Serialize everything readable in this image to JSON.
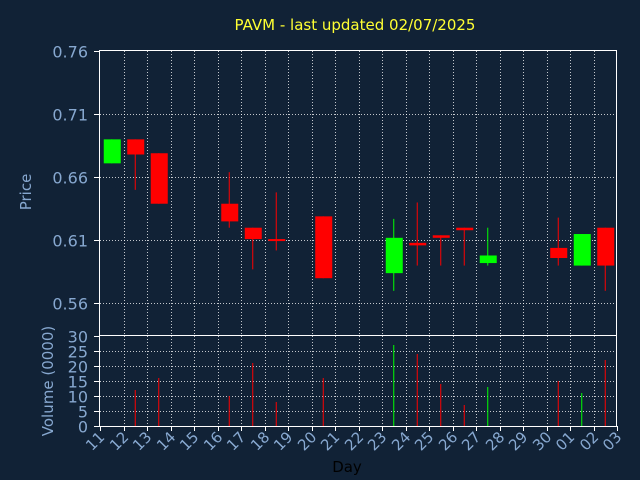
{
  "title": "PAVM - last updated 02/07/2025",
  "colors": {
    "background": "#112236",
    "title": "#ffff33",
    "axis_text": "#87a8d0",
    "frame": "#ffffff",
    "up": "#00ff00",
    "down": "#ff0000"
  },
  "chart_data": [
    {
      "type": "candlestick",
      "ylabel": "Price",
      "ylim": [
        0.535,
        0.76
      ],
      "yticks": [
        "0.76",
        "0.71",
        "0.66",
        "0.61",
        "0.56"
      ],
      "ytick_values": [
        0.76,
        0.71,
        0.66,
        0.61,
        0.56
      ],
      "grid": true,
      "candles": [
        {
          "i": 0,
          "open": 0.671,
          "close": 0.69,
          "high": 0.69,
          "low": 0.671
        },
        {
          "i": 1,
          "open": 0.69,
          "close": 0.678,
          "high": 0.69,
          "low": 0.65
        },
        {
          "i": 2,
          "open": 0.679,
          "close": 0.639,
          "high": 0.679,
          "low": 0.639
        },
        {
          "i": 5,
          "open": 0.639,
          "close": 0.625,
          "high": 0.664,
          "low": 0.62
        },
        {
          "i": 6,
          "open": 0.62,
          "close": 0.611,
          "high": 0.62,
          "low": 0.587
        },
        {
          "i": 7,
          "open": 0.611,
          "close": 0.61,
          "high": 0.648,
          "low": 0.602
        },
        {
          "i": 9,
          "open": 0.629,
          "close": 0.58,
          "high": 0.629,
          "low": 0.58
        },
        {
          "i": 12,
          "open": 0.584,
          "close": 0.612,
          "high": 0.627,
          "low": 0.57
        },
        {
          "i": 13,
          "open": 0.608,
          "close": 0.606,
          "high": 0.64,
          "low": 0.59
        },
        {
          "i": 14,
          "open": 0.614,
          "close": 0.612,
          "high": 0.614,
          "low": 0.59
        },
        {
          "i": 15,
          "open": 0.62,
          "close": 0.618,
          "high": 0.62,
          "low": 0.59
        },
        {
          "i": 16,
          "open": 0.592,
          "close": 0.598,
          "high": 0.62,
          "low": 0.59
        },
        {
          "i": 19,
          "open": 0.604,
          "close": 0.596,
          "high": 0.628,
          "low": 0.59
        },
        {
          "i": 20,
          "open": 0.59,
          "close": 0.615,
          "high": 0.615,
          "low": 0.59
        },
        {
          "i": 21,
          "open": 0.62,
          "close": 0.59,
          "high": 0.62,
          "low": 0.57
        }
      ]
    },
    {
      "type": "bar",
      "ylabel": "Volume (0000)",
      "xlabel": "Day",
      "ylim": [
        0,
        30
      ],
      "yticks": [
        "30",
        "25",
        "20",
        "15",
        "10",
        "5",
        "0"
      ],
      "ytick_values": [
        30,
        25,
        20,
        15,
        10,
        5,
        0
      ],
      "grid": true,
      "volumes": [
        {
          "i": 0,
          "value": 0,
          "dir": "up"
        },
        {
          "i": 1,
          "value": 12,
          "dir": "down"
        },
        {
          "i": 2,
          "value": 16,
          "dir": "down"
        },
        {
          "i": 5,
          "value": 10,
          "dir": "down"
        },
        {
          "i": 6,
          "value": 21,
          "dir": "down"
        },
        {
          "i": 7,
          "value": 8,
          "dir": "down"
        },
        {
          "i": 9,
          "value": 16,
          "dir": "down"
        },
        {
          "i": 12,
          "value": 27,
          "dir": "up"
        },
        {
          "i": 13,
          "value": 24,
          "dir": "down"
        },
        {
          "i": 14,
          "value": 14,
          "dir": "down"
        },
        {
          "i": 15,
          "value": 7,
          "dir": "down"
        },
        {
          "i": 16,
          "value": 13,
          "dir": "up"
        },
        {
          "i": 19,
          "value": 15,
          "dir": "down"
        },
        {
          "i": 20,
          "value": 11,
          "dir": "up"
        },
        {
          "i": 21,
          "value": 22,
          "dir": "down"
        }
      ]
    }
  ],
  "x_ticks": [
    "11",
    "12",
    "13",
    "14",
    "15",
    "16",
    "17",
    "18",
    "19",
    "20",
    "21",
    "22",
    "23",
    "24",
    "25",
    "26",
    "27",
    "28",
    "29",
    "30",
    "01",
    "02",
    "03"
  ]
}
